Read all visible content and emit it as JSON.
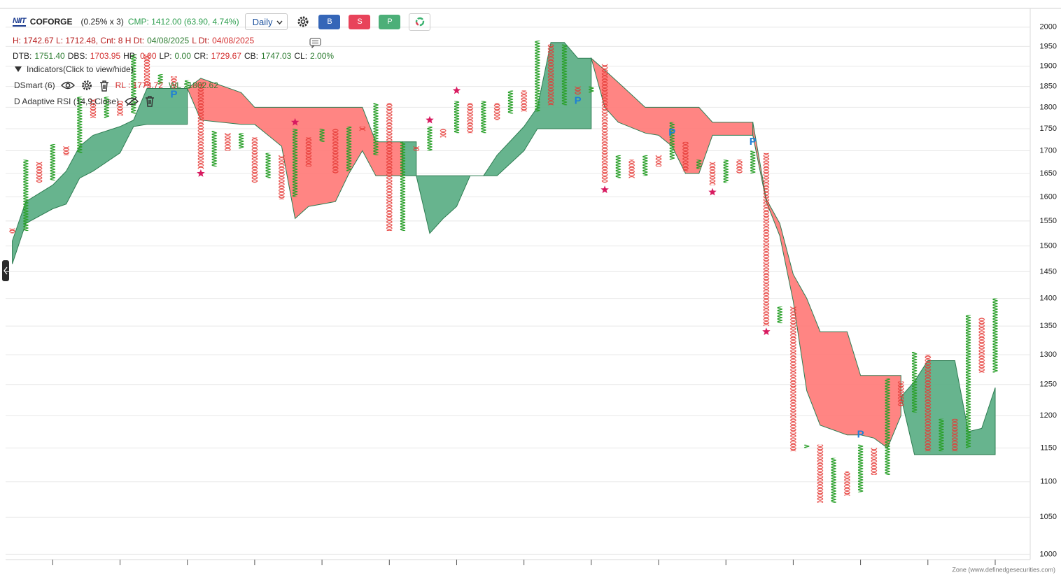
{
  "header": {
    "logo": "NIIT",
    "symbol": "COFORGE",
    "multiplier": "(0.25% x 3)",
    "cmp": "CMP: 1412.00 (63.90, 4.74%)",
    "cmp_color": "#2e9e4f",
    "interval": "Daily",
    "buttons": [
      "B",
      "S",
      "P"
    ]
  },
  "stats": {
    "line1": [
      {
        "text": "H: 1742.67 L: 1712.48, Cnt: 8 H Dt:",
        "color": "#b71c1c"
      },
      {
        "text": "04/08/2025",
        "color": "#2e7d32"
      },
      {
        "text": "L Dt:",
        "color": "#b71c1c"
      },
      {
        "text": "04/08/2025",
        "color": "#d32f2f"
      }
    ],
    "line2": [
      {
        "text": "DTB:",
        "color": "#222222"
      },
      {
        "text": "1751.40",
        "color": "#2e7d32"
      },
      {
        "text": "DBS:",
        "color": "#222222"
      },
      {
        "text": "1703.95",
        "color": "#d32f2f"
      },
      {
        "text": "HP:",
        "color": "#222222"
      },
      {
        "text": "0.00",
        "color": "#d32f2f"
      },
      {
        "text": "LP:",
        "color": "#222222"
      },
      {
        "text": "0.00",
        "color": "#2e7d32"
      },
      {
        "text": "CR:",
        "color": "#222222"
      },
      {
        "text": "1729.67",
        "color": "#d32f2f"
      },
      {
        "text": "CB:",
        "color": "#222222"
      },
      {
        "text": "1747.03",
        "color": "#2e7d32"
      },
      {
        "text": "CL:",
        "color": "#222222"
      },
      {
        "text": "2.00%",
        "color": "#2e7d32"
      }
    ]
  },
  "indicators": {
    "toggle": "Indicators(Click to view/hide)",
    "items": [
      {
        "name": "DSmart (6)",
        "values": [
          {
            "text": "RL : 1773.72",
            "color": "#d32f2f"
          },
          {
            "text": "WL : 1802.62",
            "color": "#2e7d32"
          }
        ]
      },
      {
        "name": "D Adaptive RSI (14,9,Close)",
        "values": []
      }
    ]
  },
  "chart_data": {
    "type": "pnf",
    "log": true,
    "grid": true,
    "ylim": [
      993,
      2050
    ],
    "yticks": [
      1000,
      1050,
      1100,
      1150,
      1200,
      1250,
      1300,
      1350,
      1400,
      1450,
      1500,
      1550,
      1600,
      1650,
      1700,
      1750,
      1800,
      1850,
      1900,
      1950,
      2000
    ],
    "xlim": [
      -0.5,
      75.6
    ],
    "xticks": [
      3,
      8,
      13,
      18,
      23,
      28,
      33,
      38,
      43,
      48,
      53,
      58,
      63,
      68,
      73
    ],
    "o_first": true,
    "o_color": "#e53935",
    "x_color": "#2aa02a",
    "columns": {
      "low": [
        1525,
        1530,
        1630,
        1635,
        1690,
        1695,
        1775,
        1775,
        1780,
        1785,
        1850,
        1855,
        1845,
        1845,
        1660,
        1665,
        1700,
        1705,
        1630,
        1640,
        1595,
        1600,
        1665,
        1720,
        1650,
        1655,
        1745,
        1690,
        1530,
        1530,
        1700,
        1700,
        1730,
        1740,
        1740,
        1740,
        1770,
        1785,
        1790,
        1790,
        1805,
        1805,
        1830,
        1835,
        1630,
        1640,
        1640,
        1645,
        1665,
        1680,
        1655,
        1660,
        1625,
        1630,
        1650,
        1650,
        1350,
        1355,
        1145,
        1150,
        1070,
        1070,
        1080,
        1085,
        1110,
        1110,
        1215,
        1205,
        1145,
        1145,
        1145,
        1150,
        1270,
        1270
      ],
      "high": [
        1535,
        1680,
        1675,
        1715,
        1710,
        1825,
        1820,
        1825,
        1815,
        1930,
        1930,
        1880,
        1875,
        1865,
        1860,
        1745,
        1740,
        1740,
        1730,
        1695,
        1690,
        1750,
        1730,
        1750,
        1750,
        1755,
        1755,
        1810,
        1810,
        1720,
        1710,
        1755,
        1750,
        1815,
        1810,
        1815,
        1810,
        1840,
        1840,
        1965,
        1955,
        1955,
        1850,
        1850,
        1905,
        1690,
        1680,
        1690,
        1690,
        1765,
        1720,
        1680,
        1675,
        1680,
        1680,
        1700,
        1695,
        1385,
        1385,
        1155,
        1155,
        1135,
        1115,
        1155,
        1150,
        1260,
        1255,
        1305,
        1300,
        1195,
        1195,
        1370,
        1365,
        1400
      ]
    },
    "cloud": [
      {
        "color": "#5aae84",
        "x": [
          0,
          1,
          3,
          4,
          5,
          6,
          8,
          9,
          10,
          13
        ],
        "upper": [
          1510,
          1590,
          1625,
          1655,
          1710,
          1735,
          1755,
          1770,
          1845,
          1845
        ],
        "lower": [
          1465,
          1545,
          1575,
          1585,
          1640,
          1655,
          1695,
          1755,
          1760,
          1760
        ]
      },
      {
        "color": "#ff7b78",
        "x": [
          13,
          14,
          17,
          18,
          19,
          20,
          21,
          22,
          23,
          24,
          25,
          26,
          27,
          28,
          29
        ],
        "upper": [
          1845,
          1870,
          1835,
          1800,
          1800,
          1800,
          1800,
          1800,
          1800,
          1800,
          1800,
          1800,
          1720,
          1720,
          1720
        ],
        "lower": [
          1845,
          1770,
          1760,
          1760,
          1735,
          1710,
          1555,
          1580,
          1585,
          1590,
          1650,
          1700,
          1645,
          1645,
          1645
        ]
      },
      {
        "color": "#5aae84",
        "x": [
          29,
          30,
          30,
          31,
          32,
          33,
          34,
          35
        ],
        "upper": [
          1720,
          1720,
          1645,
          1645,
          1645,
          1645,
          1645,
          1645
        ],
        "lower": [
          1645,
          1645,
          1645,
          1525,
          1555,
          1580,
          1645,
          1645
        ]
      },
      {
        "color": "#5aae84",
        "x": [
          35,
          36,
          38,
          39,
          40,
          41,
          42,
          43
        ],
        "upper": [
          1645,
          1690,
          1755,
          1800,
          1960,
          1960,
          1920,
          1920
        ],
        "lower": [
          1645,
          1645,
          1700,
          1750,
          1750,
          1750,
          1750,
          1750
        ]
      },
      {
        "color": "#ff7b78",
        "x": [
          43,
          44,
          45,
          47,
          48,
          49,
          50,
          51,
          52,
          55
        ],
        "upper": [
          1920,
          1890,
          1860,
          1800,
          1800,
          1800,
          1800,
          1800,
          1765,
          1765
        ],
        "lower": [
          1920,
          1800,
          1765,
          1740,
          1735,
          1710,
          1650,
          1650,
          1735,
          1735
        ]
      },
      {
        "color": "#ff7b78",
        "x": [
          55,
          56,
          57,
          58,
          59,
          60,
          62,
          63,
          64,
          65,
          66
        ],
        "upper": [
          1765,
          1595,
          1545,
          1445,
          1400,
          1340,
          1340,
          1265,
          1265,
          1265,
          1265
        ],
        "lower": [
          1735,
          1590,
          1520,
          1395,
          1240,
          1185,
          1170,
          1170,
          1165,
          1150,
          1200
        ]
      },
      {
        "color": "#5aae84",
        "x": [
          66,
          67,
          68,
          70,
          71,
          72,
          73
        ],
        "upper": [
          1230,
          1255,
          1290,
          1290,
          1175,
          1180,
          1245
        ],
        "lower": [
          1230,
          1140,
          1140,
          1140,
          1140,
          1140,
          1140
        ]
      }
    ],
    "cloud_edge": "#2e7d52",
    "stars": {
      "color": "#d81b60",
      "x": [
        14,
        21,
        31,
        33,
        44,
        52,
        56
      ],
      "values": [
        1650,
        1765,
        1770,
        1840,
        1615,
        1610,
        1340
      ]
    },
    "signals": {
      "label": "P",
      "color": "#1e7fd6",
      "x": [
        12,
        42,
        49,
        55,
        63
      ],
      "values": [
        1830,
        1815,
        1740,
        1720,
        1170
      ]
    },
    "source": "Zone (www.definedgesecurities.com)"
  }
}
